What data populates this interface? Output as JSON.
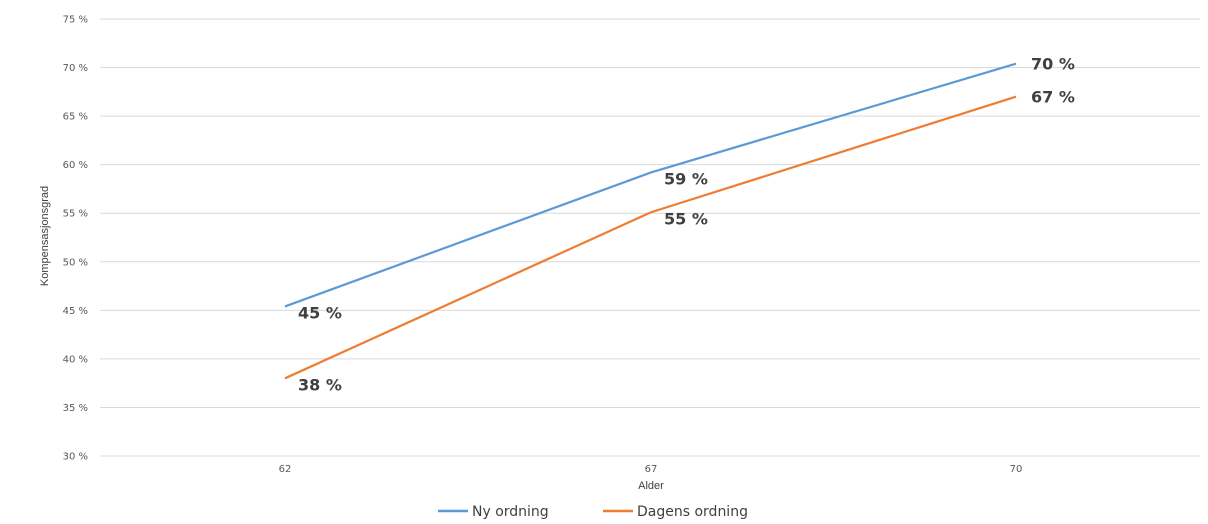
{
  "chart_data": {
    "type": "line",
    "title": "",
    "xlabel": "Alder",
    "ylabel": "Kompensasjonsgrad",
    "categories": [
      "62",
      "67",
      "70"
    ],
    "ylim": [
      30,
      75
    ],
    "ytick_step": 5,
    "ytick_labels": [
      "30 %",
      "35 %",
      "40 %",
      "45 %",
      "50 %",
      "55 %",
      "60 %",
      "65 %",
      "70 %",
      "75 %"
    ],
    "grid": true,
    "legend_position": "bottom",
    "series": [
      {
        "name": "Ny ordning",
        "color": "#5b9bd5",
        "values": [
          45.4,
          59.2,
          70.4
        ],
        "labels": [
          "45 %",
          "59 %",
          "70 %"
        ]
      },
      {
        "name": "Dagens ordning",
        "color": "#ed7d31",
        "values": [
          38,
          55.1,
          67
        ],
        "labels": [
          "38 %",
          "55 %",
          "67 %"
        ]
      }
    ]
  }
}
